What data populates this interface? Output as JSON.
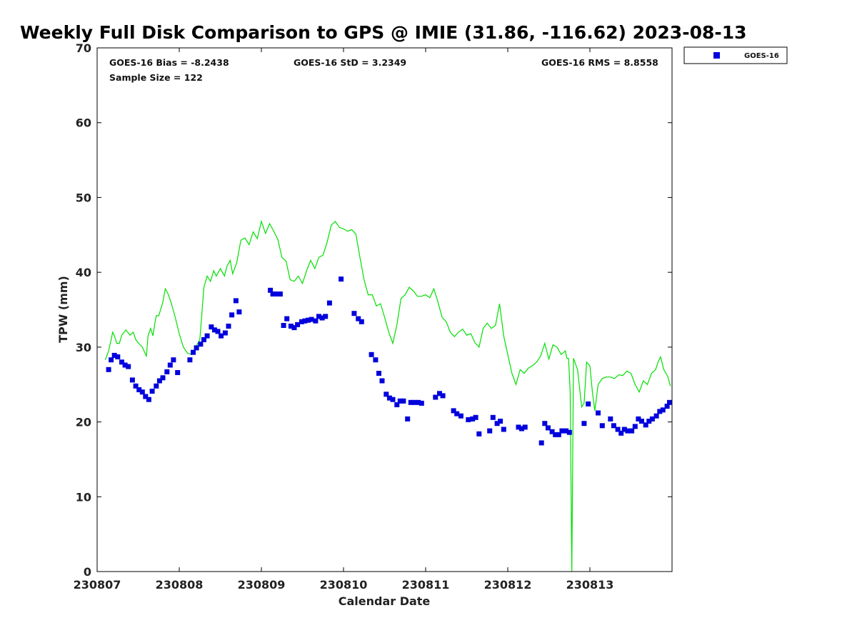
{
  "chart_data": {
    "type": "scatter",
    "title": "Weekly Full Disk Comparison to GPS @ IMIE (31.86, -116.62) 2023-08-13",
    "xlabel": "Calendar Date",
    "ylabel": "TPW (mm)",
    "xlim": [
      0,
      7
    ],
    "ylim": [
      0,
      70
    ],
    "x_ticks": [
      0,
      1,
      2,
      3,
      4,
      5,
      6
    ],
    "x_tick_labels": [
      "230807",
      "230808",
      "230809",
      "230810",
      "230811",
      "230812",
      "230813"
    ],
    "y_ticks": [
      0,
      10,
      20,
      30,
      40,
      50,
      60,
      70
    ],
    "y_tick_labels": [
      "0",
      "10",
      "20",
      "30",
      "40",
      "50",
      "60",
      "70"
    ],
    "stats": {
      "bias": "GOES-16 Bias = -8.2438",
      "std": "GOES-16 StD = 3.2349",
      "rms": "GOES-16 RMS = 8.8558",
      "sample_size": "Sample Size = 122"
    },
    "legend": [
      {
        "name": "GOES-16",
        "color": "#0000dd",
        "marker": "square"
      }
    ],
    "series": [
      {
        "name": "GOES-16",
        "kind": "points",
        "color": "#0000dd",
        "x": [
          0.14,
          0.17,
          0.21,
          0.25,
          0.3,
          0.34,
          0.38,
          0.43,
          0.47,
          0.51,
          0.55,
          0.59,
          0.63,
          0.67,
          0.72,
          0.76,
          0.8,
          0.85,
          0.89,
          0.93,
          0.98,
          1.13,
          1.17,
          1.21,
          1.26,
          1.3,
          1.34,
          1.39,
          1.43,
          1.47,
          1.51,
          1.56,
          1.6,
          1.64,
          1.69,
          1.73,
          2.11,
          2.14,
          2.19,
          2.23,
          2.27,
          2.31,
          2.36,
          2.4,
          2.44,
          2.49,
          2.53,
          2.57,
          2.61,
          2.66,
          2.7,
          2.74,
          2.78,
          2.83,
          2.97,
          3.13,
          3.18,
          3.22,
          3.34,
          3.39,
          3.43,
          3.47,
          3.52,
          3.56,
          3.6,
          3.65,
          3.69,
          3.73,
          3.78,
          3.82,
          3.86,
          3.91,
          3.95,
          4.12,
          4.17,
          4.21,
          4.34,
          4.38,
          4.43,
          4.52,
          4.57,
          4.61,
          4.65,
          4.78,
          4.82,
          4.87,
          4.91,
          4.95,
          5.13,
          5.17,
          5.21,
          5.41,
          5.45,
          5.49,
          5.54,
          5.58,
          5.62,
          5.66,
          5.71,
          5.75,
          5.93,
          5.98,
          6.1,
          6.15,
          6.25,
          6.29,
          6.34,
          6.38,
          6.42,
          6.46,
          6.51,
          6.55,
          6.59,
          6.63,
          6.68,
          6.72,
          6.76,
          6.81,
          6.85,
          6.89,
          6.94,
          6.97
        ],
        "y": [
          27.0,
          28.3,
          28.9,
          28.7,
          28.0,
          27.6,
          27.4,
          25.6,
          24.8,
          24.3,
          24.0,
          23.4,
          23.0,
          24.1,
          24.8,
          25.5,
          25.9,
          26.7,
          27.6,
          28.3,
          26.6,
          28.3,
          29.3,
          29.9,
          30.4,
          31.0,
          31.5,
          32.7,
          32.3,
          32.1,
          31.5,
          31.9,
          32.8,
          34.3,
          36.2,
          34.7,
          37.6,
          37.1,
          37.1,
          37.1,
          32.9,
          33.8,
          32.8,
          32.6,
          33.0,
          33.4,
          33.5,
          33.6,
          33.7,
          33.5,
          34.1,
          33.9,
          34.1,
          35.9,
          39.1,
          34.5,
          33.8,
          33.4,
          29.0,
          28.3,
          26.5,
          25.5,
          23.7,
          23.2,
          23.0,
          22.3,
          22.8,
          22.8,
          20.4,
          22.6,
          22.6,
          22.6,
          22.5,
          23.3,
          23.8,
          23.5,
          21.5,
          21.1,
          20.8,
          20.3,
          20.4,
          20.6,
          18.4,
          18.8,
          20.6,
          19.8,
          20.1,
          19.0,
          19.3,
          19.1,
          19.3,
          17.2,
          19.8,
          19.2,
          18.7,
          18.3,
          18.3,
          18.8,
          18.8,
          18.6,
          19.8,
          22.4,
          21.2,
          19.5,
          20.4,
          19.5,
          19.0,
          18.5,
          19.0,
          18.8,
          18.8,
          19.4,
          20.4,
          20.1,
          19.6,
          20.1,
          20.4,
          20.8,
          21.4,
          21.6,
          22.1,
          22.6
        ]
      },
      {
        "name": "GPS",
        "kind": "line",
        "color": "#00e000",
        "x": [
          0.1,
          0.14,
          0.17,
          0.19,
          0.21,
          0.24,
          0.27,
          0.3,
          0.35,
          0.4,
          0.44,
          0.47,
          0.5,
          0.55,
          0.6,
          0.62,
          0.65,
          0.68,
          0.7,
          0.72,
          0.75,
          0.8,
          0.83,
          0.86,
          0.9,
          0.95,
          1.0,
          1.05,
          1.1,
          1.15,
          1.2,
          1.25,
          1.3,
          1.34,
          1.38,
          1.42,
          1.45,
          1.5,
          1.55,
          1.58,
          1.62,
          1.65,
          1.7,
          1.75,
          1.8,
          1.85,
          1.9,
          1.95,
          2.0,
          2.05,
          2.1,
          2.15,
          2.2,
          2.25,
          2.3,
          2.35,
          2.4,
          2.45,
          2.5,
          2.55,
          2.6,
          2.65,
          2.7,
          2.75,
          2.8,
          2.85,
          2.9,
          2.95,
          3.0,
          3.05,
          3.1,
          3.15,
          3.2,
          3.25,
          3.3,
          3.35,
          3.4,
          3.45,
          3.5,
          3.55,
          3.6,
          3.65,
          3.7,
          3.75,
          3.8,
          3.85,
          3.9,
          3.95,
          4.0,
          4.05,
          4.1,
          4.15,
          4.2,
          4.25,
          4.3,
          4.35,
          4.4,
          4.45,
          4.5,
          4.55,
          4.6,
          4.65,
          4.7,
          4.75,
          4.8,
          4.85,
          4.9,
          4.95,
          5.0,
          5.05,
          5.1,
          5.15,
          5.2,
          5.25,
          5.3,
          5.35,
          5.4,
          5.45,
          5.5,
          5.55,
          5.6,
          5.65,
          5.7,
          5.72,
          5.74,
          5.76,
          5.78,
          5.8,
          5.85,
          5.9,
          5.93,
          5.96,
          6.0,
          6.03,
          6.06,
          6.1,
          6.15,
          6.2,
          6.25,
          6.3,
          6.35,
          6.4,
          6.45,
          6.5,
          6.55,
          6.6,
          6.65,
          6.7,
          6.75,
          6.8,
          6.83,
          6.86,
          6.9,
          6.95,
          6.98
        ],
        "y": [
          28.3,
          29.5,
          31.0,
          32.0,
          31.5,
          30.5,
          30.5,
          31.6,
          32.3,
          31.6,
          32.0,
          31.0,
          30.6,
          30.0,
          28.8,
          31.5,
          32.5,
          31.5,
          33.0,
          34.2,
          34.2,
          36.0,
          37.8,
          37.2,
          36.0,
          34.0,
          31.8,
          30.0,
          29.2,
          29.0,
          30.0,
          31.0,
          38.0,
          39.5,
          38.8,
          40.2,
          39.5,
          40.5,
          39.5,
          40.8,
          41.6,
          39.8,
          41.3,
          44.3,
          44.6,
          43.7,
          45.4,
          44.5,
          46.8,
          45.2,
          46.5,
          45.5,
          44.4,
          42.0,
          41.5,
          39.0,
          38.8,
          39.5,
          38.5,
          40.2,
          41.6,
          40.5,
          42.0,
          42.3,
          44.0,
          46.3,
          46.8,
          46.0,
          45.8,
          45.5,
          45.7,
          45.1,
          42.0,
          39.0,
          37.0,
          37.0,
          35.5,
          35.8,
          34.0,
          32.0,
          30.5,
          33.0,
          36.5,
          37.0,
          38.0,
          37.5,
          36.8,
          36.8,
          37.0,
          36.6,
          37.8,
          36.0,
          34.0,
          33.4,
          32.0,
          31.4,
          32.0,
          32.4,
          31.6,
          31.8,
          30.6,
          30.0,
          32.5,
          33.2,
          32.5,
          32.9,
          35.8,
          31.5,
          29.0,
          26.5,
          25.0,
          27.0,
          26.5,
          27.2,
          27.5,
          28.0,
          28.8,
          30.5,
          28.4,
          30.3,
          30.0,
          29.0,
          29.5,
          28.5,
          28.5,
          24.0,
          0.0,
          28.5,
          27.0,
          22.0,
          22.5,
          28.0,
          27.5,
          24.0,
          21.5,
          25.0,
          25.8,
          26.0,
          26.0,
          25.8,
          26.3,
          26.2,
          26.8,
          26.5,
          25.0,
          24.0,
          25.5,
          25.0,
          26.5,
          27.0,
          28.0,
          28.7,
          27.0,
          26.0,
          24.8
        ]
      }
    ]
  }
}
